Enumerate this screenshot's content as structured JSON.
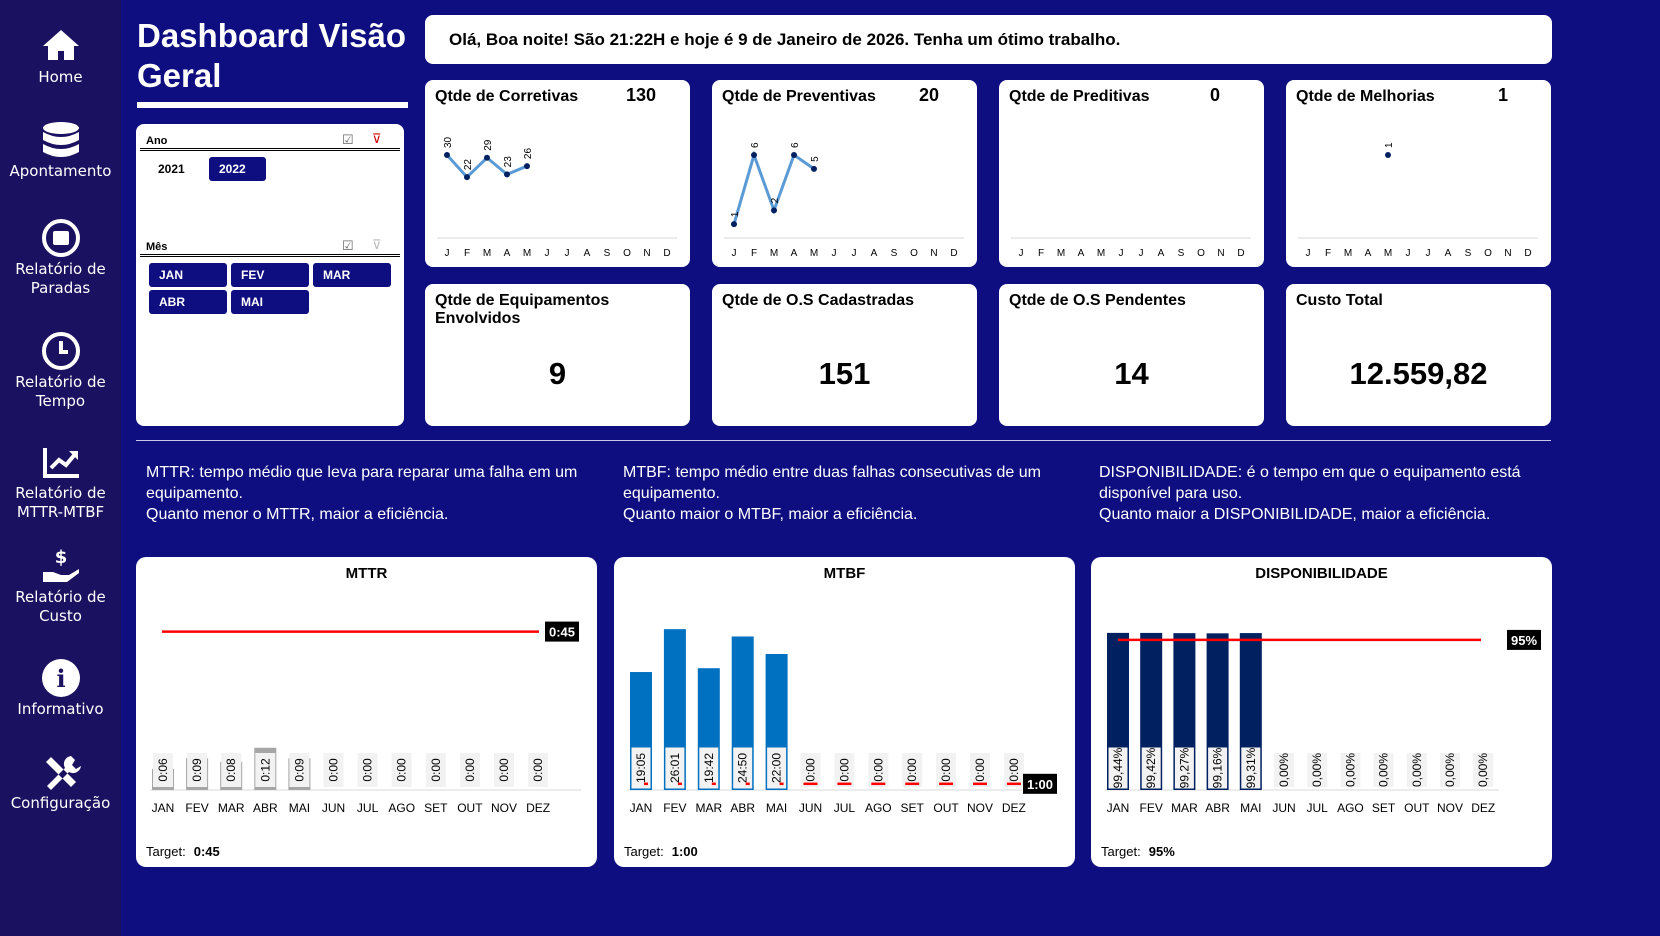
{
  "sidebar": {
    "items": [
      {
        "label": "Home",
        "icon": "home-icon"
      },
      {
        "label": "Apontamento",
        "icon": "database-icon"
      },
      {
        "label": "Relatório de Paradas",
        "icon": "stop-circle-icon"
      },
      {
        "label": "Relatório de Tempo",
        "icon": "clock-icon"
      },
      {
        "label": "Relatório de MTTR-MTBF",
        "icon": "chart-line-icon"
      },
      {
        "label": "Relatório de Custo",
        "icon": "hand-dollar-icon"
      },
      {
        "label": "Informativo",
        "icon": "info-icon"
      },
      {
        "label": "Configuração",
        "icon": "tools-icon"
      }
    ]
  },
  "header": {
    "title": "Dashboard Visão Geral",
    "greeting": "Olá, Boa noite! São 21:22H e hoje é 9 de Janeiro de 2026. Tenha um ótimo trabalho."
  },
  "slicers": {
    "ano": {
      "label": "Ano",
      "options": [
        {
          "label": "2021",
          "selected": false
        },
        {
          "label": "2022",
          "selected": true
        }
      ]
    },
    "mes": {
      "label": "Mês",
      "options": [
        {
          "label": "JAN",
          "selected": true
        },
        {
          "label": "FEV",
          "selected": true
        },
        {
          "label": "MAR",
          "selected": true
        },
        {
          "label": "ABR",
          "selected": true
        },
        {
          "label": "MAI",
          "selected": true
        }
      ]
    }
  },
  "month_initials": [
    "J",
    "F",
    "M",
    "A",
    "M",
    "J",
    "J",
    "A",
    "S",
    "O",
    "N",
    "D"
  ],
  "kpi_sparks": [
    {
      "title": "Qtde de Corretivas",
      "value": "130",
      "series": [
        30,
        22,
        29,
        23,
        26
      ]
    },
    {
      "title": "Qtde de Preventivas",
      "value": "20",
      "series": [
        1,
        6,
        2,
        6,
        5
      ]
    },
    {
      "title": "Qtde de Preditivas",
      "value": "0",
      "series": []
    },
    {
      "title": "Qtde de Melhorias",
      "value": "1",
      "series": [
        null,
        null,
        null,
        null,
        1
      ]
    }
  ],
  "kpi_big": [
    {
      "title": "Qtde de Equipamentos Envolvidos",
      "value": "9"
    },
    {
      "title": "Qtde de O.S Cadastradas",
      "value": "151"
    },
    {
      "title": "Qtde de O.S Pendentes",
      "value": "14"
    },
    {
      "title": "Custo Total",
      "value": "12.559,82"
    }
  ],
  "descriptions": [
    {
      "line1": "MTTR: tempo médio que leva para reparar uma falha em um equipamento.",
      "line2": "Quanto menor o MTTR, maior a eficiência."
    },
    {
      "line1": "MTBF: tempo médio entre duas falhas consecutivas de um equipamento.",
      "line2": "Quanto maior o MTBF, maior a eficiência."
    },
    {
      "line1": "DISPONIBILIDADE: é o tempo em que o equipamento está disponível para uso.",
      "line2": "Quanto maior a DISPONIBILIDADE, maior a eficiência."
    }
  ],
  "chart_data": [
    {
      "type": "bar",
      "title": "MTTR",
      "categories": [
        "JAN",
        "FEV",
        "MAR",
        "ABR",
        "MAI",
        "JUN",
        "JUL",
        "AGO",
        "SET",
        "OUT",
        "NOV",
        "DEZ"
      ],
      "values": [
        6,
        9,
        8,
        12,
        9,
        0,
        0,
        0,
        0,
        0,
        0,
        0
      ],
      "labels": [
        "0:06",
        "0:09",
        "0:08",
        "0:12",
        "0:09",
        "0:00",
        "0:00",
        "0:00",
        "0:00",
        "0:00",
        "0:00",
        "0:00"
      ],
      "target": 45,
      "target_label": "0:45",
      "target_text": "Target:",
      "ylim": [
        0,
        50
      ],
      "bar_color": "#a6a6a6",
      "target_style": "solid"
    },
    {
      "type": "bar",
      "title": "MTBF",
      "categories": [
        "JAN",
        "FEV",
        "MAR",
        "ABR",
        "MAI",
        "JUN",
        "JUL",
        "AGO",
        "SET",
        "OUT",
        "NOV",
        "DEZ"
      ],
      "values": [
        1145,
        1561,
        1182,
        1490,
        1320,
        0,
        0,
        0,
        0,
        0,
        0,
        0
      ],
      "labels": [
        "19:05",
        "26:01",
        "19:42",
        "24:50",
        "22:00",
        "0:00",
        "0:00",
        "0:00",
        "0:00",
        "0:00",
        "0:00",
        "0:00"
      ],
      "target": 60,
      "target_label": "1:00",
      "target_text": "Target:",
      "ylim": [
        0,
        1650
      ],
      "bar_color": "#0070c0",
      "target_style": "dashed"
    },
    {
      "type": "bar",
      "title": "DISPONIBILIDADE",
      "categories": [
        "JAN",
        "FEV",
        "MAR",
        "ABR",
        "MAI",
        "JUN",
        "JUL",
        "AGO",
        "SET",
        "OUT",
        "NOV",
        "DEZ"
      ],
      "values": [
        99.44,
        99.42,
        99.27,
        99.16,
        99.31,
        0,
        0,
        0,
        0,
        0,
        0,
        0
      ],
      "labels": [
        "99,44%",
        "99,42%",
        "99,27%",
        "99,16%",
        "99,31%",
        "0,00%",
        "0,00%",
        "0,00%",
        "0,00%",
        "0,00%",
        "0,00%",
        "0,00%"
      ],
      "target": 95,
      "target_label": "95%",
      "target_text": "Target:",
      "ylim": [
        0,
        100
      ],
      "bar_color": "#002060",
      "target_style": "solid"
    }
  ],
  "colors": {
    "background": "#0e0e80",
    "sidebar": "#1a1160",
    "line": "#5b9bd5",
    "marker": "#002060",
    "target": "#ff0000"
  }
}
